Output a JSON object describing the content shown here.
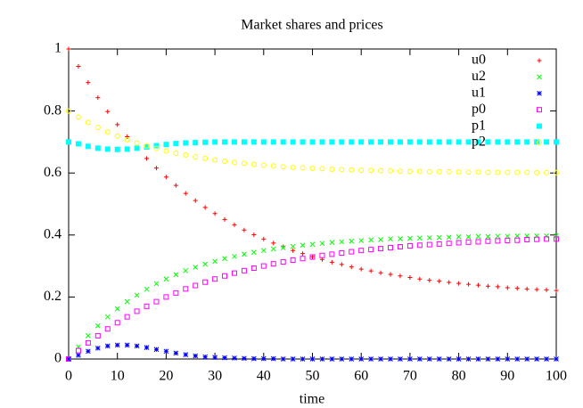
{
  "chart_data": {
    "type": "scatter",
    "title": "Market shares and prices",
    "x_label": "time",
    "x": [
      0,
      2,
      4,
      6,
      8,
      10,
      12,
      14,
      16,
      18,
      20,
      22,
      24,
      26,
      28,
      30,
      32,
      34,
      36,
      38,
      40,
      42,
      44,
      46,
      48,
      50,
      52,
      54,
      56,
      58,
      60,
      62,
      64,
      66,
      68,
      70,
      72,
      74,
      76,
      78,
      80,
      82,
      84,
      86,
      88,
      90,
      92,
      94,
      96,
      98,
      100
    ],
    "series": [
      {
        "name": "u0",
        "color": "#ff0000",
        "marker": "plus",
        "values": [
          1.0,
          0.944,
          0.892,
          0.843,
          0.798,
          0.756,
          0.717,
          0.681,
          0.647,
          0.616,
          0.587,
          0.56,
          0.534,
          0.511,
          0.489,
          0.469,
          0.45,
          0.433,
          0.416,
          0.401,
          0.387,
          0.374,
          0.362,
          0.35,
          0.34,
          0.33,
          0.321,
          0.312,
          0.305,
          0.297,
          0.29,
          0.284,
          0.278,
          0.273,
          0.268,
          0.263,
          0.258,
          0.254,
          0.251,
          0.247,
          0.244,
          0.241,
          0.238,
          0.235,
          0.233,
          0.23,
          0.228,
          0.226,
          0.224,
          0.223,
          0.221
        ]
      },
      {
        "name": "u2",
        "color": "#00ff00",
        "marker": "cross",
        "values": [
          0,
          0.039,
          0.075,
          0.107,
          0.136,
          0.162,
          0.185,
          0.206,
          0.225,
          0.243,
          0.258,
          0.272,
          0.285,
          0.296,
          0.306,
          0.315,
          0.324,
          0.331,
          0.338,
          0.344,
          0.35,
          0.355,
          0.359,
          0.363,
          0.367,
          0.37,
          0.373,
          0.376,
          0.378,
          0.38,
          0.382,
          0.384,
          0.385,
          0.387,
          0.388,
          0.389,
          0.39,
          0.391,
          0.392,
          0.393,
          0.394,
          0.394,
          0.395,
          0.395,
          0.396,
          0.396,
          0.397,
          0.397,
          0.397,
          0.397,
          0.398
        ]
      },
      {
        "name": "u1",
        "color": "#0000ff",
        "marker": "star",
        "values": [
          0,
          0.012,
          0.025,
          0.035,
          0.042,
          0.045,
          0.045,
          0.042,
          0.037,
          0.031,
          0.025,
          0.019,
          0.014,
          0.01,
          0.007,
          0.005,
          0.004,
          0.003,
          0.002,
          0.001,
          0.001,
          0.001,
          0,
          0,
          0,
          0,
          0,
          0,
          0,
          0,
          0,
          0,
          0,
          0,
          0,
          0,
          0,
          0,
          0,
          0,
          0,
          0,
          0,
          0,
          0,
          0,
          0,
          0,
          0,
          0,
          0
        ]
      },
      {
        "name": "p0",
        "color": "#ff00ff",
        "marker": "square",
        "values": [
          0,
          0.027,
          0.052,
          0.075,
          0.097,
          0.117,
          0.136,
          0.154,
          0.17,
          0.185,
          0.2,
          0.213,
          0.226,
          0.237,
          0.248,
          0.258,
          0.268,
          0.277,
          0.285,
          0.293,
          0.3,
          0.307,
          0.313,
          0.319,
          0.324,
          0.329,
          0.334,
          0.338,
          0.342,
          0.346,
          0.35,
          0.353,
          0.356,
          0.359,
          0.362,
          0.365,
          0.367,
          0.369,
          0.371,
          0.373,
          0.375,
          0.377,
          0.378,
          0.38,
          0.381,
          0.382,
          0.383,
          0.385,
          0.386,
          0.387,
          0.387
        ]
      },
      {
        "name": "p1",
        "color": "#00ffff",
        "marker": "filled-square",
        "values": [
          0.7,
          0.694,
          0.686,
          0.68,
          0.677,
          0.676,
          0.677,
          0.68,
          0.684,
          0.688,
          0.692,
          0.695,
          0.697,
          0.698,
          0.699,
          0.7,
          0.7,
          0.7,
          0.7,
          0.7,
          0.7,
          0.7,
          0.7,
          0.7,
          0.7,
          0.7,
          0.7,
          0.7,
          0.7,
          0.7,
          0.7,
          0.7,
          0.7,
          0.7,
          0.7,
          0.7,
          0.7,
          0.7,
          0.7,
          0.7,
          0.7,
          0.7,
          0.7,
          0.7,
          0.7,
          0.7,
          0.7,
          0.7,
          0.7,
          0.7,
          0.7
        ]
      },
      {
        "name": "p2",
        "color": "#ffff00",
        "marker": "circle",
        "values": [
          0.8,
          0.78,
          0.763,
          0.747,
          0.732,
          0.719,
          0.707,
          0.697,
          0.687,
          0.679,
          0.671,
          0.664,
          0.658,
          0.652,
          0.647,
          0.642,
          0.638,
          0.634,
          0.631,
          0.628,
          0.625,
          0.623,
          0.62,
          0.618,
          0.617,
          0.615,
          0.614,
          0.612,
          0.611,
          0.61,
          0.609,
          0.608,
          0.607,
          0.607,
          0.606,
          0.605,
          0.605,
          0.604,
          0.604,
          0.604,
          0.603,
          0.603,
          0.603,
          0.602,
          0.602,
          0.602,
          0.602,
          0.602,
          0.601,
          0.601,
          0.601
        ]
      }
    ],
    "xlim": [
      0,
      100
    ],
    "ylim": [
      0,
      1
    ],
    "xticks": [
      0,
      10,
      20,
      30,
      40,
      50,
      60,
      70,
      80,
      90,
      100
    ],
    "yticks": [
      0,
      0.2,
      0.4,
      0.6,
      0.8,
      1
    ],
    "legend": "top right"
  }
}
